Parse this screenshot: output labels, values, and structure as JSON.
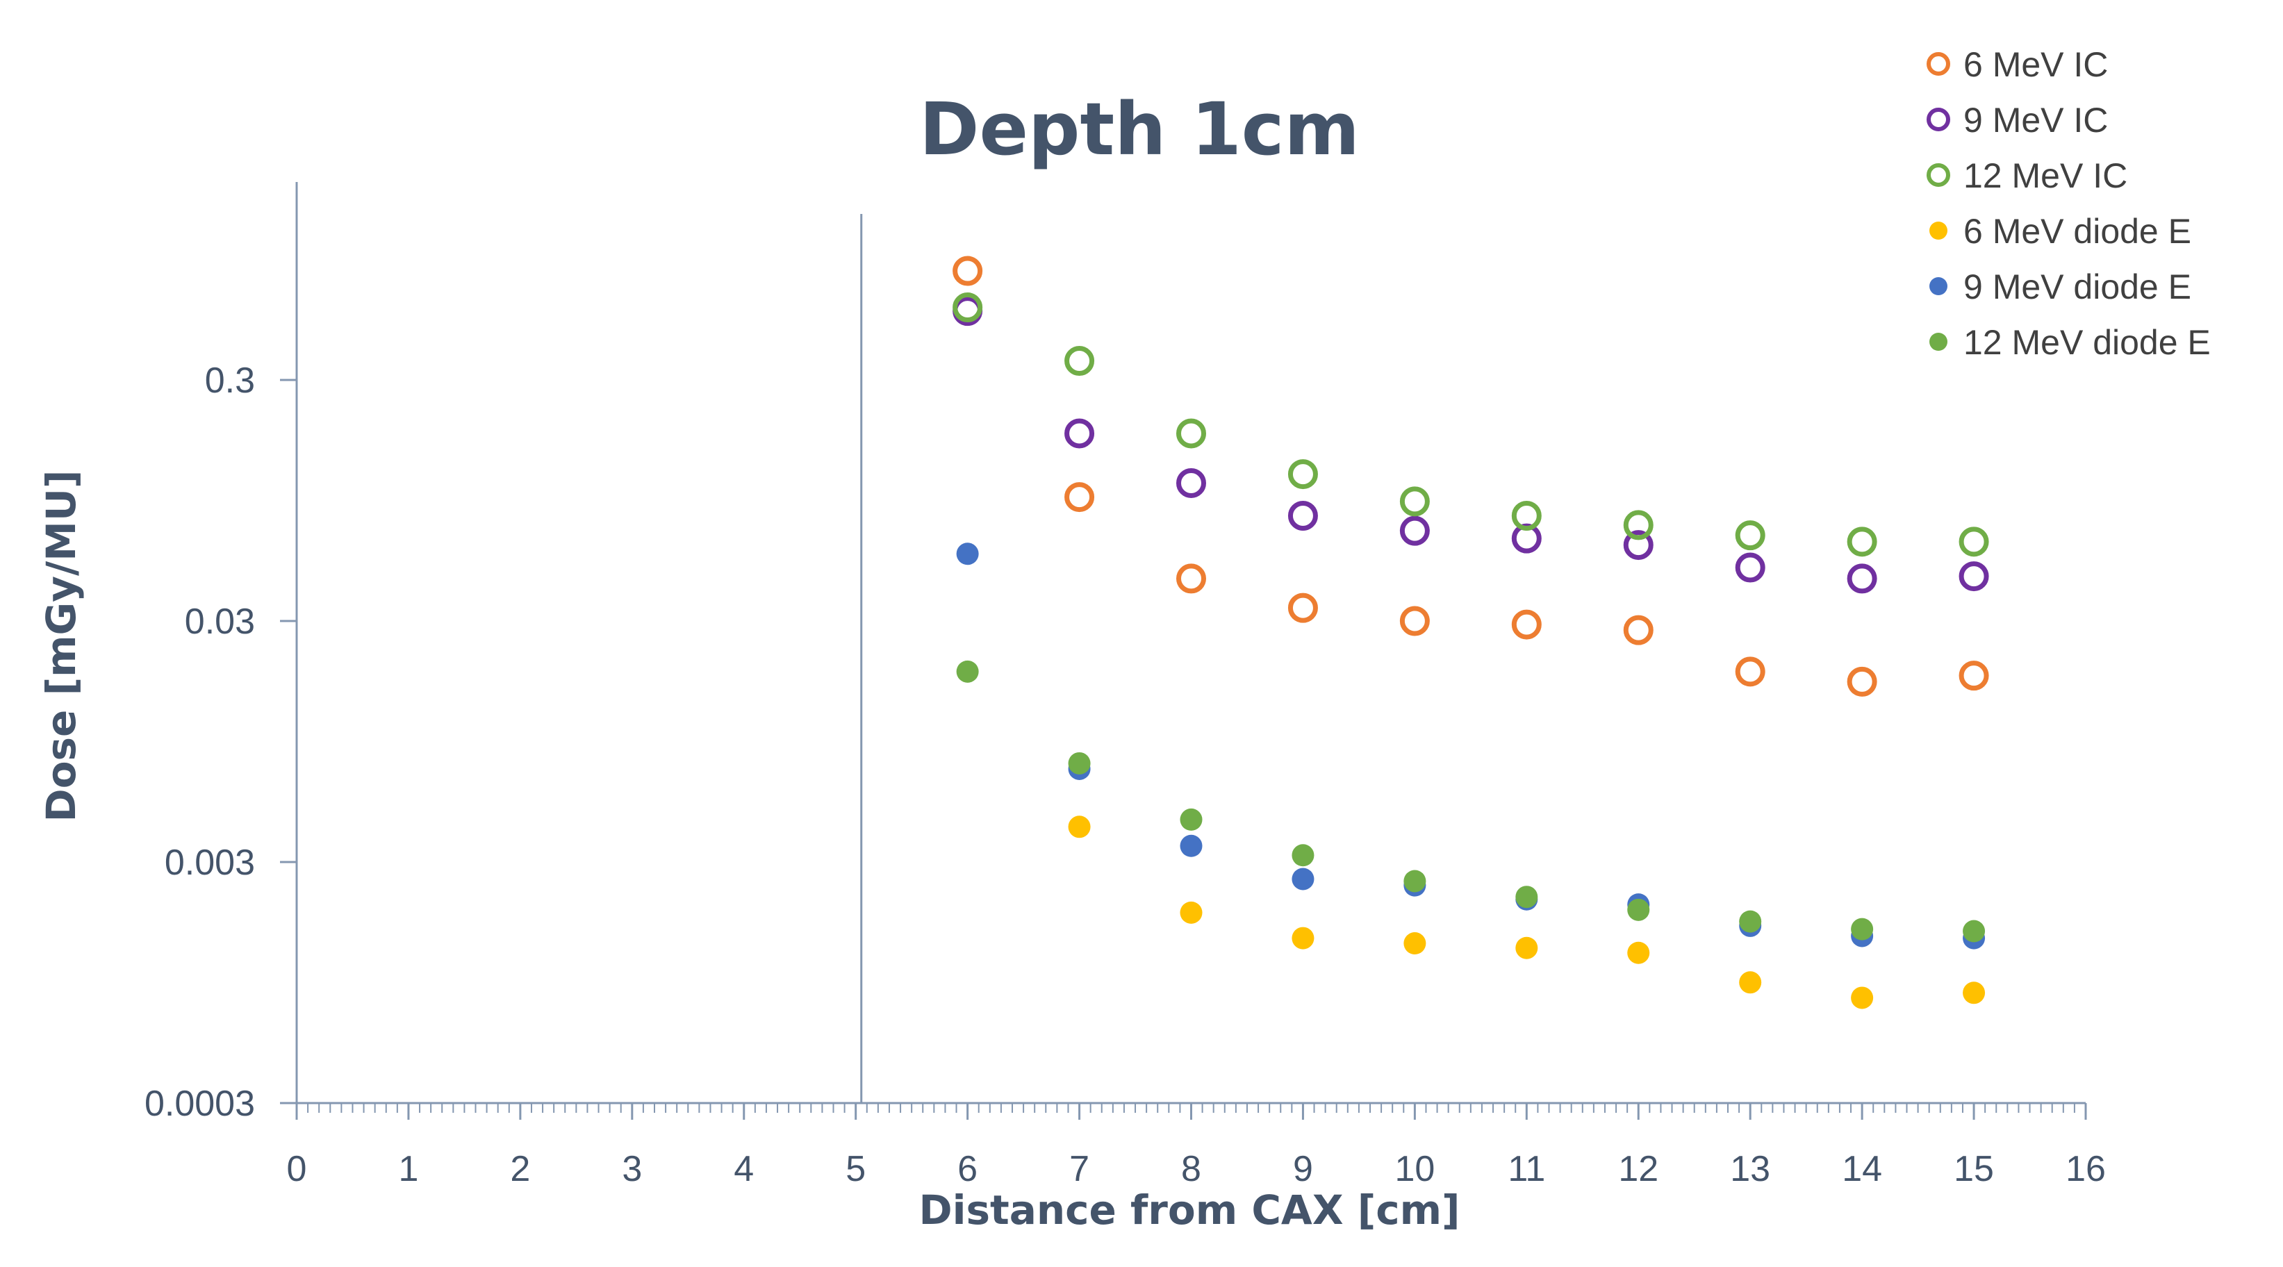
{
  "chart_data": {
    "type": "scatter",
    "title": "Depth 1cm",
    "xlabel": "Distance from CAX [cm]",
    "ylabel": "Dose [mGy/MU]",
    "xlim": [
      0,
      16
    ],
    "ylim": [
      0.0003,
      0.9
    ],
    "y_scale": "log",
    "x_ticks": [
      0,
      1,
      2,
      3,
      4,
      5,
      6,
      7,
      8,
      9,
      10,
      11,
      12,
      13,
      14,
      15,
      16
    ],
    "x_tick_labels": [
      "0",
      "1",
      "2",
      "3",
      "4",
      "5",
      "6",
      "7",
      "8",
      "9",
      "10",
      "11",
      "12",
      "13",
      "14",
      "15",
      "16"
    ],
    "y_ticks": [
      0.0003,
      0.003,
      0.03,
      0.3
    ],
    "y_tick_labels": [
      "0.0003",
      "0.003",
      "0.03",
      "0.3"
    ],
    "reference_line_x": 5.05,
    "grid": false,
    "legend_position": "top-right",
    "series": [
      {
        "name": "6 MeV IC",
        "marker": "hollow",
        "color": "#ed7d31",
        "x": [
          6,
          7,
          8,
          9,
          10,
          11,
          12,
          13,
          14,
          15
        ],
        "y": [
          0.85,
          0.098,
          0.045,
          0.034,
          0.03,
          0.029,
          0.0275,
          0.0185,
          0.0168,
          0.0178
        ]
      },
      {
        "name": "9 MeV IC",
        "marker": "hollow",
        "color": "#7030a0",
        "x": [
          6,
          7,
          8,
          9,
          10,
          11,
          12,
          13,
          14,
          15
        ],
        "y": [
          0.58,
          0.18,
          0.112,
          0.082,
          0.071,
          0.066,
          0.062,
          0.05,
          0.045,
          0.046
        ]
      },
      {
        "name": "12 MeV IC",
        "marker": "hollow",
        "color": "#70ad47",
        "x": [
          6,
          7,
          8,
          9,
          10,
          11,
          12,
          13,
          14,
          15
        ],
        "y": [
          0.6,
          0.36,
          0.18,
          0.122,
          0.094,
          0.082,
          0.075,
          0.068,
          0.064,
          0.064
        ]
      },
      {
        "name": "6 MeV diode E",
        "marker": "filled",
        "color": "#ffc000",
        "x": [
          7,
          8,
          9,
          10,
          11,
          12,
          13,
          14,
          15
        ],
        "y": [
          0.0042,
          0.00185,
          0.00145,
          0.00138,
          0.00132,
          0.00126,
          0.00095,
          0.00082,
          0.00086
        ]
      },
      {
        "name": "9 MeV diode E",
        "marker": "filled",
        "color": "#4472c4",
        "x": [
          6,
          7,
          8,
          9,
          10,
          11,
          12,
          13,
          14,
          15
        ],
        "y": [
          0.057,
          0.0073,
          0.0035,
          0.00255,
          0.0024,
          0.0021,
          0.002,
          0.00163,
          0.00148,
          0.00145
        ]
      },
      {
        "name": "12 MeV diode E",
        "marker": "filled",
        "color": "#70ad47",
        "x": [
          6,
          7,
          8,
          9,
          10,
          11,
          12,
          13,
          14,
          15
        ],
        "y": [
          0.0185,
          0.0077,
          0.0045,
          0.0032,
          0.0025,
          0.00215,
          0.0019,
          0.0017,
          0.00158,
          0.00155
        ]
      }
    ]
  }
}
